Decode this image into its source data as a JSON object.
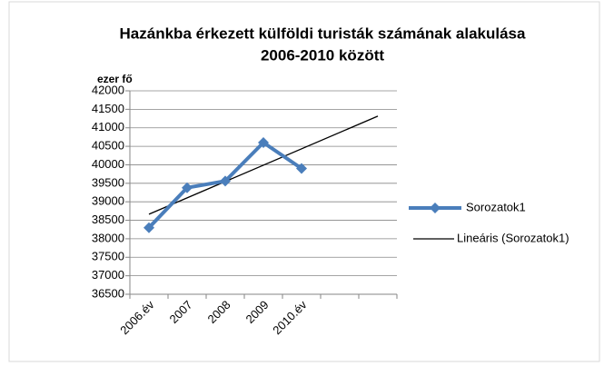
{
  "chart_data": {
    "type": "line",
    "title": [
      "Hazánkba érkezett külföldi turisták számának alakulása",
      "2006-2010 között"
    ],
    "y_label": "ezer fő",
    "categories": [
      "2006.év",
      "2007",
      "2008",
      "2009",
      "2010.év",
      null,
      null
    ],
    "series": [
      {
        "name": "Sorozatok1",
        "color": "#4a7ebb",
        "values": [
          38300,
          39380,
          39560,
          40600,
          39900,
          null,
          null
        ]
      }
    ],
    "trendline": {
      "name": "Lineáris (Sorozatok1)",
      "color": "#000000"
    },
    "ylim": [
      36500,
      42000
    ],
    "yticks": [
      36500,
      37000,
      37500,
      38000,
      38500,
      39000,
      39500,
      40000,
      40500,
      41000,
      41500,
      42000
    ],
    "grid": true,
    "legend": "right"
  }
}
